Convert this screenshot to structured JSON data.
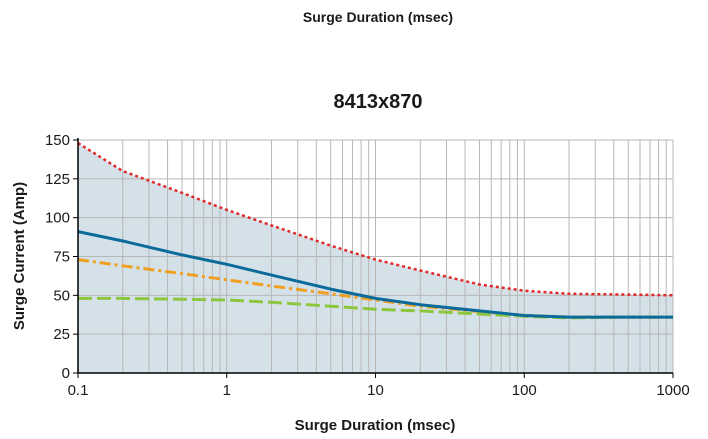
{
  "header_label": "Surge Duration (msec)",
  "colors": {
    "fill": "#d5e1e8",
    "grid": "#b7b7b7",
    "series_red": "#e02a2a",
    "series_blue": "#0a6a99",
    "series_orange": "#f0a020",
    "series_green": "#8cc63f"
  },
  "chart_data": {
    "type": "line",
    "title": "8413x870",
    "xlabel": "Surge Duration (msec)",
    "ylabel": "Surge Current (Amp)",
    "x_scale": "log",
    "xlim": [
      0.1,
      1000
    ],
    "ylim": [
      0,
      150
    ],
    "x_ticks": [
      "0.1",
      "1",
      "10",
      "100",
      "1000"
    ],
    "y_ticks": [
      "0",
      "25",
      "50",
      "75",
      "100",
      "125",
      "150"
    ],
    "grid": true,
    "series": [
      {
        "style": "dotted",
        "color": "#e02a2a",
        "points": [
          [
            0.1,
            148
          ],
          [
            0.2,
            130
          ],
          [
            0.5,
            116
          ],
          [
            1,
            105
          ],
          [
            2,
            95
          ],
          [
            5,
            82
          ],
          [
            10,
            73
          ],
          [
            20,
            66
          ],
          [
            50,
            57
          ],
          [
            100,
            53
          ],
          [
            200,
            51
          ],
          [
            500,
            50.5
          ],
          [
            1000,
            50
          ]
        ]
      },
      {
        "style": "solid",
        "color": "#0a6a99",
        "points": [
          [
            0.1,
            91
          ],
          [
            0.2,
            85
          ],
          [
            0.5,
            76
          ],
          [
            1,
            70
          ],
          [
            2,
            63
          ],
          [
            5,
            54
          ],
          [
            10,
            48
          ],
          [
            20,
            44
          ],
          [
            50,
            40
          ],
          [
            100,
            37
          ],
          [
            200,
            36
          ],
          [
            500,
            36
          ],
          [
            1000,
            36
          ]
        ]
      },
      {
        "style": "dashdot",
        "color": "#f0a020",
        "points": [
          [
            0.1,
            73
          ],
          [
            0.2,
            69
          ],
          [
            0.5,
            64
          ],
          [
            1,
            60
          ],
          [
            2,
            56
          ],
          [
            5,
            51
          ],
          [
            10,
            47
          ],
          [
            20,
            43
          ],
          [
            50,
            39.5
          ],
          [
            100,
            37
          ],
          [
            200,
            36
          ],
          [
            500,
            36
          ],
          [
            1000,
            36
          ]
        ]
      },
      {
        "style": "dashed",
        "color": "#8cc63f",
        "points": [
          [
            0.1,
            48
          ],
          [
            0.2,
            48
          ],
          [
            0.5,
            47.5
          ],
          [
            1,
            47
          ],
          [
            2,
            45.5
          ],
          [
            5,
            43
          ],
          [
            10,
            41
          ],
          [
            20,
            40
          ],
          [
            50,
            38
          ],
          [
            100,
            36.5
          ],
          [
            200,
            35.5
          ],
          [
            500,
            36
          ],
          [
            1000,
            36
          ]
        ]
      }
    ]
  }
}
